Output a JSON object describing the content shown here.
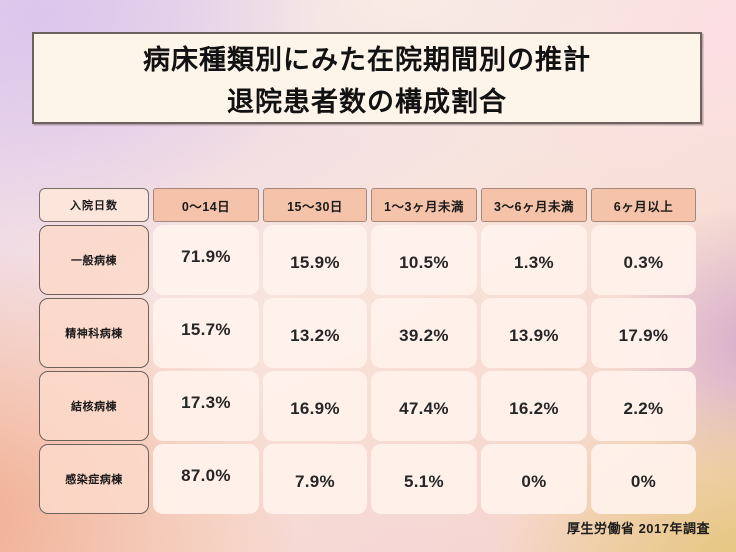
{
  "title": {
    "line1": "病床種類別にみた在院期間別の推計",
    "line2": "退院患者数の構成割合"
  },
  "table": {
    "corner_label": "入院日数",
    "columns": [
      "0〜14日",
      "15〜30日",
      "1〜3ヶ月未満",
      "3〜6ヶ月未満",
      "6ヶ月以上"
    ],
    "rows": [
      {
        "label": "一般病棟",
        "values": [
          "71.9%",
          "15.9%",
          "10.5%",
          "1.3%",
          "0.3%"
        ]
      },
      {
        "label": "精神科病棟",
        "values": [
          "15.7%",
          "13.2%",
          "39.2%",
          "13.9%",
          "17.9%"
        ]
      },
      {
        "label": "結核病棟",
        "values": [
          "17.3%",
          "16.9%",
          "47.4%",
          "16.2%",
          "2.2%"
        ]
      },
      {
        "label": "感染症病棟",
        "values": [
          "87.0%",
          "7.9%",
          "5.1%",
          "0%",
          "0%"
        ]
      }
    ]
  },
  "footer": {
    "source": "厚生労働省 2017年調査"
  },
  "colors": {
    "title_box_bg": "#fdf4ea",
    "period_header_bg": "#f5c3a9",
    "row_label_bg": "#fcd9ca",
    "data_cell_bg": "#fff2ec",
    "border_dark": "#6e625f",
    "bg_lavender": "#dcc6ec",
    "bg_pink": "#fcdee2",
    "bg_salmon": "#f1ad90",
    "bg_gold": "#e4c576"
  },
  "chart_data": {
    "type": "table",
    "title": "病床種類別にみた在院期間別の推計退院患者数の構成割合",
    "columns": [
      "入院日数",
      "0〜14日",
      "15〜30日",
      "1〜3ヶ月未満",
      "3〜6ヶ月未満",
      "6ヶ月以上"
    ],
    "rows": [
      {
        "label": "一般病棟",
        "values_percent": [
          71.9,
          15.9,
          10.5,
          1.3,
          0.3
        ]
      },
      {
        "label": "精神科病棟",
        "values_percent": [
          15.7,
          13.2,
          39.2,
          13.9,
          17.9
        ]
      },
      {
        "label": "結核病棟",
        "values_percent": [
          17.3,
          16.9,
          47.4,
          16.2,
          2.2
        ]
      },
      {
        "label": "感染症病棟",
        "values_percent": [
          87.0,
          7.9,
          5.1,
          0,
          0
        ]
      }
    ],
    "source": "厚生労働省 2017年調査"
  }
}
